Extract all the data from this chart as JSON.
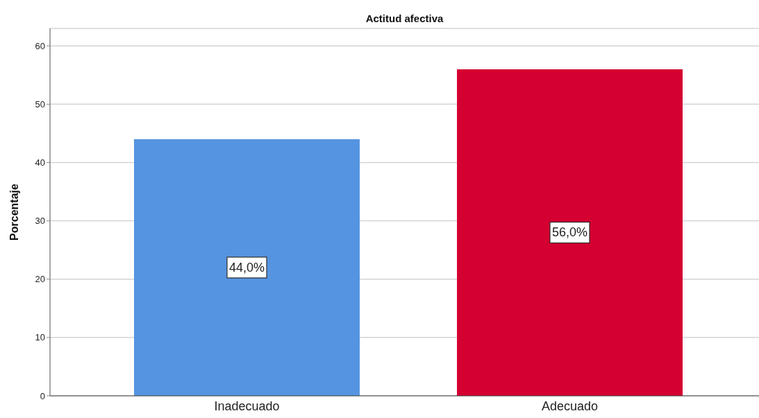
{
  "chart_data": {
    "type": "bar",
    "title": "Actitud afectiva",
    "ylabel": "Porcentaje",
    "categories": [
      "Inadecuado",
      "Adecuado"
    ],
    "values": [
      44,
      56
    ],
    "colors": [
      "#5594e0",
      "#d50032"
    ],
    "value_labels": [
      "44,0%",
      "56,0%"
    ],
    "ylim": [
      0,
      63
    ],
    "yticks": [
      0,
      10,
      20,
      30,
      40,
      50,
      60
    ],
    "grid": "y"
  }
}
